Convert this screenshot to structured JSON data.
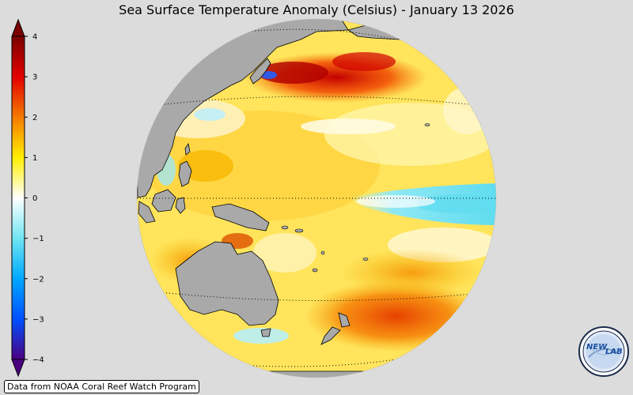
{
  "title": "Sea Surface Temperature Anomaly (Celsius) - January 13 2026",
  "colorbar": {
    "ticks": [
      "4",
      "3",
      "2",
      "1",
      "0",
      "−1",
      "−2",
      "−3",
      "−4"
    ],
    "min": -4,
    "max": 4,
    "colors": {
      "4": "#7a0000",
      "3": "#e30000",
      "2": "#f57a00",
      "1": "#ffee00",
      "0": "#ffffff",
      "-1": "#6fe6f2",
      "-2": "#00a8ff",
      "-3": "#0050ff",
      "-4": "#4b0082"
    }
  },
  "map": {
    "projection": "orthographic",
    "land_color": "#a9a9a9",
    "graticule": "dotted"
  },
  "credit": "Data from NOAA Coral Reef Watch Program",
  "logo": {
    "text_left": "NEW",
    "text_right": "LAB"
  }
}
